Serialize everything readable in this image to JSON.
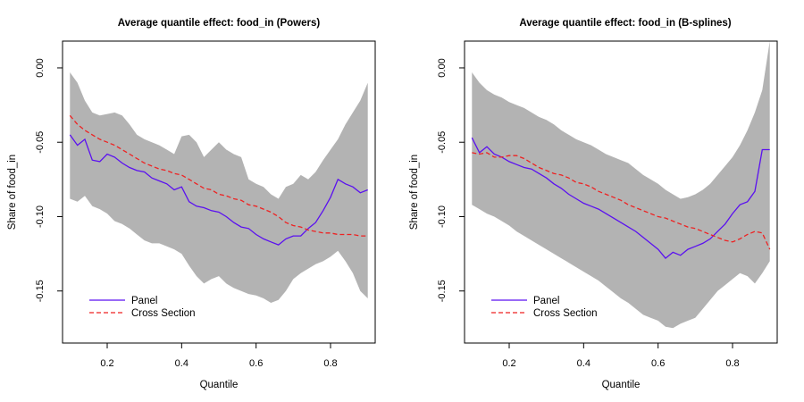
{
  "chart_data": [
    {
      "type": "line",
      "title": "Average quantile effect: food_in (Powers)",
      "xlabel": "Quantile",
      "ylabel": "Share of food_in",
      "xlim": [
        0.08,
        0.92
      ],
      "ylim": [
        -0.185,
        0.018
      ],
      "x_ticks": [
        "0.2",
        "0.4",
        "0.6",
        "0.8"
      ],
      "y_ticks": [
        "0.00",
        "-0.05",
        "-0.10",
        "-0.15"
      ],
      "grid": false,
      "legend_position": "bottom-left",
      "band_color": "#b3b3b3",
      "x": [
        0.1,
        0.12,
        0.14,
        0.16,
        0.18,
        0.2,
        0.22,
        0.24,
        0.26,
        0.28,
        0.3,
        0.32,
        0.34,
        0.36,
        0.38,
        0.4,
        0.42,
        0.44,
        0.46,
        0.48,
        0.5,
        0.52,
        0.54,
        0.56,
        0.58,
        0.6,
        0.62,
        0.64,
        0.66,
        0.68,
        0.7,
        0.72,
        0.74,
        0.76,
        0.78,
        0.8,
        0.82,
        0.84,
        0.86,
        0.88,
        0.9
      ],
      "band_upper": [
        -0.003,
        -0.01,
        -0.022,
        -0.03,
        -0.032,
        -0.031,
        -0.03,
        -0.032,
        -0.038,
        -0.045,
        -0.048,
        -0.05,
        -0.052,
        -0.055,
        -0.058,
        -0.046,
        -0.045,
        -0.05,
        -0.06,
        -0.055,
        -0.05,
        -0.055,
        -0.058,
        -0.06,
        -0.075,
        -0.078,
        -0.08,
        -0.085,
        -0.088,
        -0.08,
        -0.078,
        -0.072,
        -0.075,
        -0.07,
        -0.062,
        -0.055,
        -0.048,
        -0.038,
        -0.03,
        -0.022,
        -0.01
      ],
      "band_lower": [
        -0.088,
        -0.09,
        -0.086,
        -0.093,
        -0.095,
        -0.098,
        -0.103,
        -0.105,
        -0.108,
        -0.112,
        -0.116,
        -0.118,
        -0.118,
        -0.12,
        -0.122,
        -0.125,
        -0.133,
        -0.14,
        -0.145,
        -0.142,
        -0.14,
        -0.145,
        -0.148,
        -0.15,
        -0.152,
        -0.153,
        -0.155,
        -0.158,
        -0.156,
        -0.15,
        -0.142,
        -0.138,
        -0.135,
        -0.132,
        -0.13,
        -0.127,
        -0.123,
        -0.13,
        -0.138,
        -0.15,
        -0.155
      ],
      "series": [
        {
          "name": "Panel",
          "color": "#5a10f0",
          "style": "solid",
          "values": [
            -0.045,
            -0.052,
            -0.048,
            -0.062,
            -0.063,
            -0.058,
            -0.06,
            -0.064,
            -0.067,
            -0.069,
            -0.07,
            -0.074,
            -0.076,
            -0.078,
            -0.082,
            -0.08,
            -0.09,
            -0.093,
            -0.094,
            -0.096,
            -0.097,
            -0.1,
            -0.104,
            -0.107,
            -0.108,
            -0.112,
            -0.115,
            -0.117,
            -0.119,
            -0.115,
            -0.113,
            -0.113,
            -0.108,
            -0.104,
            -0.096,
            -0.087,
            -0.075,
            -0.078,
            -0.08,
            -0.084,
            -0.082
          ]
        },
        {
          "name": "Cross Section",
          "color": "#ee2222",
          "style": "dashed",
          "values": [
            -0.032,
            -0.038,
            -0.042,
            -0.045,
            -0.048,
            -0.05,
            -0.052,
            -0.055,
            -0.058,
            -0.061,
            -0.064,
            -0.066,
            -0.068,
            -0.069,
            -0.071,
            -0.072,
            -0.075,
            -0.078,
            -0.081,
            -0.082,
            -0.085,
            -0.086,
            -0.088,
            -0.089,
            -0.092,
            -0.093,
            -0.095,
            -0.097,
            -0.1,
            -0.104,
            -0.106,
            -0.107,
            -0.109,
            -0.11,
            -0.111,
            -0.111,
            -0.112,
            -0.112,
            -0.112,
            -0.113,
            -0.113
          ]
        }
      ]
    },
    {
      "type": "line",
      "title": "Average quantile effect: food_in (B-splines)",
      "xlabel": "Quantile",
      "ylabel": "Share of food_in",
      "xlim": [
        0.08,
        0.92
      ],
      "ylim": [
        -0.185,
        0.018
      ],
      "x_ticks": [
        "0.2",
        "0.4",
        "0.6",
        "0.8"
      ],
      "y_ticks": [
        "0.00",
        "-0.05",
        "-0.10",
        "-0.15"
      ],
      "grid": false,
      "legend_position": "bottom-left",
      "band_color": "#b3b3b3",
      "x": [
        0.1,
        0.12,
        0.14,
        0.16,
        0.18,
        0.2,
        0.22,
        0.24,
        0.26,
        0.28,
        0.3,
        0.32,
        0.34,
        0.36,
        0.38,
        0.4,
        0.42,
        0.44,
        0.46,
        0.48,
        0.5,
        0.52,
        0.54,
        0.56,
        0.58,
        0.6,
        0.62,
        0.64,
        0.66,
        0.68,
        0.7,
        0.72,
        0.74,
        0.76,
        0.78,
        0.8,
        0.82,
        0.84,
        0.86,
        0.88,
        0.9
      ],
      "band_upper": [
        -0.003,
        -0.01,
        -0.015,
        -0.018,
        -0.02,
        -0.023,
        -0.025,
        -0.027,
        -0.03,
        -0.033,
        -0.035,
        -0.038,
        -0.042,
        -0.045,
        -0.048,
        -0.05,
        -0.052,
        -0.055,
        -0.058,
        -0.06,
        -0.062,
        -0.064,
        -0.068,
        -0.072,
        -0.075,
        -0.078,
        -0.082,
        -0.085,
        -0.088,
        -0.087,
        -0.085,
        -0.082,
        -0.078,
        -0.072,
        -0.066,
        -0.06,
        -0.052,
        -0.042,
        -0.03,
        -0.015,
        0.018
      ],
      "band_lower": [
        -0.092,
        -0.095,
        -0.098,
        -0.1,
        -0.103,
        -0.106,
        -0.11,
        -0.113,
        -0.116,
        -0.119,
        -0.122,
        -0.125,
        -0.128,
        -0.131,
        -0.134,
        -0.137,
        -0.14,
        -0.143,
        -0.147,
        -0.151,
        -0.155,
        -0.158,
        -0.162,
        -0.166,
        -0.168,
        -0.17,
        -0.174,
        -0.175,
        -0.172,
        -0.17,
        -0.168,
        -0.162,
        -0.156,
        -0.15,
        -0.146,
        -0.142,
        -0.138,
        -0.14,
        -0.145,
        -0.138,
        -0.13
      ],
      "series": [
        {
          "name": "Panel",
          "color": "#5a10f0",
          "style": "solid",
          "values": [
            -0.047,
            -0.057,
            -0.053,
            -0.058,
            -0.06,
            -0.063,
            -0.065,
            -0.067,
            -0.068,
            -0.071,
            -0.074,
            -0.078,
            -0.081,
            -0.085,
            -0.088,
            -0.091,
            -0.093,
            -0.095,
            -0.098,
            -0.101,
            -0.104,
            -0.107,
            -0.11,
            -0.114,
            -0.118,
            -0.122,
            -0.128,
            -0.124,
            -0.126,
            -0.122,
            -0.12,
            -0.118,
            -0.115,
            -0.11,
            -0.105,
            -0.098,
            -0.092,
            -0.09,
            -0.083,
            -0.055,
            -0.055
          ]
        },
        {
          "name": "Cross Section",
          "color": "#ee2222",
          "style": "dashed",
          "values": [
            -0.057,
            -0.058,
            -0.057,
            -0.06,
            -0.06,
            -0.059,
            -0.059,
            -0.061,
            -0.064,
            -0.067,
            -0.069,
            -0.071,
            -0.072,
            -0.074,
            -0.077,
            -0.078,
            -0.08,
            -0.083,
            -0.085,
            -0.087,
            -0.089,
            -0.092,
            -0.094,
            -0.096,
            -0.098,
            -0.1,
            -0.101,
            -0.103,
            -0.105,
            -0.107,
            -0.108,
            -0.11,
            -0.112,
            -0.114,
            -0.116,
            -0.117,
            -0.115,
            -0.112,
            -0.11,
            -0.111,
            -0.122
          ]
        }
      ]
    }
  ]
}
